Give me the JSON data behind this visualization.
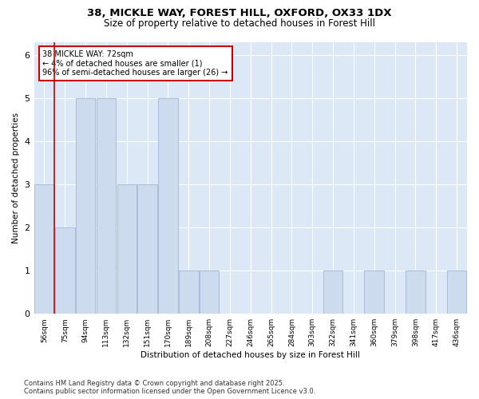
{
  "title_line1": "38, MICKLE WAY, FOREST HILL, OXFORD, OX33 1DX",
  "title_line2": "Size of property relative to detached houses in Forest Hill",
  "xlabel": "Distribution of detached houses by size in Forest Hill",
  "ylabel": "Number of detached properties",
  "categories": [
    "56sqm",
    "75sqm",
    "94sqm",
    "113sqm",
    "132sqm",
    "151sqm",
    "170sqm",
    "189sqm",
    "208sqm",
    "227sqm",
    "246sqm",
    "265sqm",
    "284sqm",
    "303sqm",
    "322sqm",
    "341sqm",
    "360sqm",
    "379sqm",
    "398sqm",
    "417sqm",
    "436sqm"
  ],
  "values": [
    3,
    2,
    5,
    5,
    3,
    3,
    5,
    1,
    1,
    0,
    0,
    0,
    0,
    0,
    1,
    0,
    1,
    0,
    1,
    0,
    1
  ],
  "bar_color": "#ccdcee",
  "bar_edgecolor": "#aabbdd",
  "highlight_line_color": "#cc0000",
  "annotation_text": "38 MICKLE WAY: 72sqm\n← 4% of detached houses are smaller (1)\n96% of semi-detached houses are larger (26) →",
  "annotation_box_color": "#ffffff",
  "annotation_box_edgecolor": "#cc0000",
  "ylim": [
    0,
    6.3
  ],
  "yticks": [
    0,
    1,
    2,
    3,
    4,
    5,
    6
  ],
  "footnote": "Contains HM Land Registry data © Crown copyright and database right 2025.\nContains public sector information licensed under the Open Government Licence v3.0.",
  "fig_bg_color": "#ffffff",
  "plot_bg_color": "#dce8f5"
}
